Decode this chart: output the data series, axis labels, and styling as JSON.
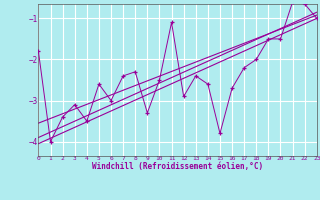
{
  "background_color": "#b0ecef",
  "grid_color": "#c8e8ec",
  "line_color": "#990099",
  "xlim": [
    0,
    23
  ],
  "ylim": [
    -4.35,
    -0.65
  ],
  "yticks": [
    -4,
    -3,
    -2,
    -1
  ],
  "xticks": [
    0,
    1,
    2,
    3,
    4,
    5,
    6,
    7,
    8,
    9,
    10,
    11,
    12,
    13,
    14,
    15,
    16,
    17,
    18,
    19,
    20,
    21,
    22,
    23
  ],
  "scatter_x": [
    0,
    1,
    2,
    3,
    4,
    5,
    6,
    7,
    8,
    9,
    10,
    11,
    12,
    13,
    14,
    15,
    16,
    17,
    18,
    19,
    20,
    21,
    22,
    23
  ],
  "scatter_y": [
    -1.8,
    -4.0,
    -3.4,
    -3.1,
    -3.5,
    -2.6,
    -3.0,
    -2.4,
    -2.3,
    -3.3,
    -2.5,
    -1.1,
    -2.9,
    -2.4,
    -2.6,
    -3.8,
    -2.7,
    -2.2,
    -2.0,
    -1.5,
    -1.5,
    -0.6,
    -0.65,
    -1.0
  ],
  "reg_lines": [
    [
      0,
      23,
      -3.9,
      -0.85
    ],
    [
      0,
      23,
      -3.55,
      -0.92
    ],
    [
      0,
      23,
      -4.05,
      -1.0
    ]
  ],
  "xlabel": "Windchill (Refroidissement éolien,°C)"
}
